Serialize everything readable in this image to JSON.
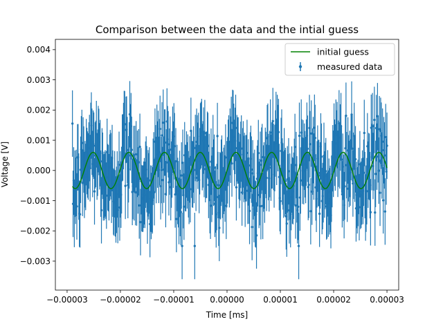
{
  "chart_data": {
    "type": "scatter",
    "title": "Comparison between the data and the intial guess",
    "xlabel": "Time [ms]",
    "ylabel": "Voltage [V]",
    "xlim": [
      -3.22e-05,
      3.22e-05
    ],
    "ylim": [
      -0.00396,
      0.00434
    ],
    "xticks": [
      -3e-05,
      -2e-05,
      -1e-05,
      0,
      1e-05,
      2e-05,
      3e-05
    ],
    "xtick_labels": [
      "−0.00003",
      "−0.00002",
      "−0.00001",
      "0.00000",
      "0.00001",
      "0.00002",
      "0.00003"
    ],
    "yticks": [
      -0.003,
      -0.002,
      -0.001,
      0,
      0.001,
      0.002,
      0.003,
      0.004
    ],
    "ytick_labels": [
      "−0.003",
      "−0.002",
      "−0.001",
      "0.000",
      "0.001",
      "0.002",
      "0.003",
      "0.004"
    ],
    "grid": false,
    "legend_position": "top-right",
    "series": [
      {
        "name": "initial guess",
        "kind": "line",
        "color": "#008000",
        "amplitude": 0.0006,
        "period": 6.7e-06,
        "phase": 0.0,
        "x_range": [
          -2.9e-05,
          3e-05
        ]
      },
      {
        "name": "measured data",
        "kind": "errorbar",
        "color": "#1f77b4",
        "x_range": [
          -2.9e-05,
          3e-05
        ],
        "n_points": 500,
        "amplitude": 0.0006,
        "noise_std": 0.00075,
        "error": 0.0011
      }
    ]
  }
}
